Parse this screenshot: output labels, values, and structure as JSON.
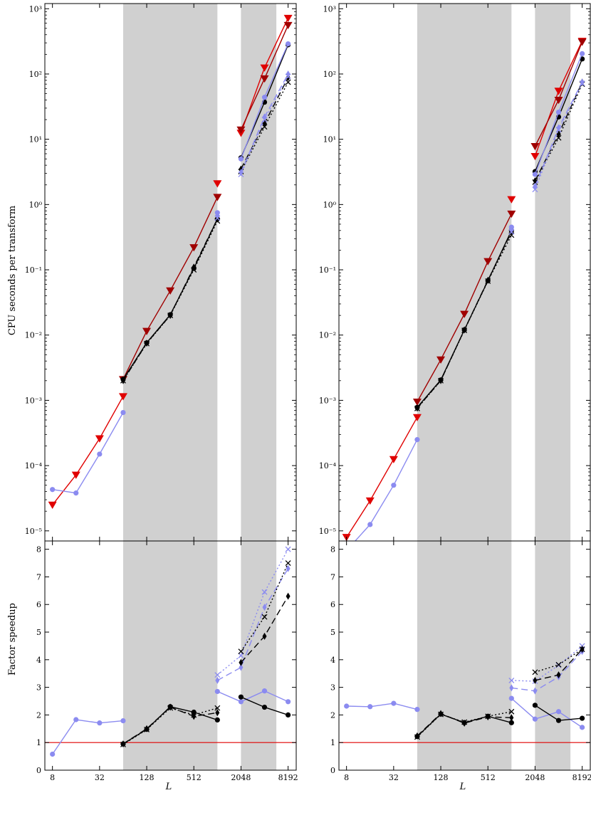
{
  "figure": {
    "ylabel_top": "CPU seconds per transform",
    "ylabel_bottom": "Factor speedup",
    "xlabel": "L"
  },
  "colors": {
    "red": "#e00000",
    "dark_red": "#a00000",
    "black": "#000000",
    "light_blue": "#8b8bf0",
    "shade": "#d0d0d0",
    "unity_line": "#e00000"
  },
  "chart_data": [
    {
      "panel": "left",
      "type": "line",
      "xscale": "log2",
      "x_ticks": [
        8,
        32,
        128,
        512,
        2048,
        8192
      ],
      "x_tick_labels": [
        "8",
        "32",
        "128",
        "512",
        "2048",
        "8192"
      ],
      "shaded_x_ranges": [
        [
          64,
          1024
        ],
        [
          2048,
          5800
        ]
      ],
      "top": {
        "yscale": "log10",
        "ylim": [
          7e-06,
          1200
        ],
        "y_tick_labels": [
          "10⁻⁵",
          "10⁻⁴",
          "10⁻³",
          "10⁻²",
          "10⁻¹",
          "10⁰",
          "10¹",
          "10²",
          "10³"
        ],
        "series": [
          {
            "style": "red-triangle",
            "x": [
              8,
              16,
              32,
              64
            ],
            "y": [
              2.5e-05,
              7.2e-05,
              0.00026,
              0.00115
            ]
          },
          {
            "style": "blue-circle",
            "x": [
              8,
              16,
              32,
              64
            ],
            "y": [
              4.3e-05,
              3.8e-05,
              0.00015,
              0.00065
            ]
          },
          {
            "style": "darkred-triangle",
            "x": [
              64,
              128,
              256,
              512,
              1024
            ],
            "y": [
              0.0021,
              0.0115,
              0.048,
              0.22,
              1.3
            ]
          },
          {
            "style": "red-triangle",
            "x": [
              1024
            ],
            "y": [
              2.1
            ]
          },
          {
            "style": "black-circle",
            "x": [
              64,
              128,
              256,
              512,
              1024
            ],
            "y": [
              0.0021,
              0.0076,
              0.0205,
              0.105,
              0.6
            ]
          },
          {
            "style": "black-diamond-dashed",
            "x": [
              64,
              128,
              256,
              512,
              1024
            ],
            "y": [
              0.002,
              0.0075,
              0.02,
              0.11,
              0.6
            ]
          },
          {
            "style": "black-cross-dotted",
            "x": [
              64,
              128,
              256,
              512,
              1024
            ],
            "y": [
              0.002,
              0.0074,
              0.02,
              0.1,
              0.56
            ]
          },
          {
            "style": "blue-circle",
            "x": [
              1024
            ],
            "y": [
              0.75
            ]
          },
          {
            "style": "blue-diamond-dashed",
            "x": [
              1024
            ],
            "y": [
              0.68
            ]
          },
          {
            "style": "blue-cross-dotted",
            "x": [
              1024
            ],
            "y": [
              0.62
            ]
          },
          {
            "style": "red-triangle",
            "x": [
              2048,
              4096,
              8192
            ],
            "y": [
              12.5,
              125,
              720
            ]
          },
          {
            "style": "darkred-triangle",
            "x": [
              2048,
              4096,
              8192
            ],
            "y": [
              14,
              85,
              560
            ]
          },
          {
            "style": "black-circle",
            "x": [
              2048,
              4096,
              8192
            ],
            "y": [
              5.2,
              37,
              280
            ]
          },
          {
            "style": "blue-circle",
            "x": [
              2048,
              4096,
              8192
            ],
            "y": [
              5.0,
              44,
              290
            ]
          },
          {
            "style": "black-diamond-dashed",
            "x": [
              2048,
              4096,
              8192
            ],
            "y": [
              3.5,
              17.5,
              88
            ]
          },
          {
            "style": "black-cross-dotted",
            "x": [
              2048,
              4096,
              8192
            ],
            "y": [
              3.2,
              15.5,
              75
            ]
          },
          {
            "style": "blue-diamond-dashed",
            "x": [
              2048,
              4096,
              8192
            ],
            "y": [
              3.1,
              22,
              100
            ]
          },
          {
            "style": "blue-cross-dotted",
            "x": [
              2048,
              4096,
              8192
            ],
            "y": [
              2.9,
              20,
              92
            ]
          }
        ]
      },
      "bottom": {
        "yscale": "linear",
        "ylim": [
          0,
          8.3
        ],
        "y_ticks": [
          0,
          1,
          2,
          3,
          4,
          5,
          6,
          7,
          8
        ],
        "reference_line": 1,
        "series": [
          {
            "style": "blue-circle",
            "x": [
              8,
              16,
              32,
              64
            ],
            "y": [
              0.58,
              1.83,
              1.71,
              1.79
            ]
          },
          {
            "style": "black-circle",
            "x": [
              64,
              128,
              256,
              512,
              1024
            ],
            "y": [
              0.95,
              1.48,
              2.3,
              2.1,
              1.82
            ]
          },
          {
            "style": "black-diamond-dashed",
            "x": [
              64,
              128,
              256,
              512,
              1024
            ],
            "y": [
              0.95,
              1.5,
              2.28,
              1.95,
              2.08
            ]
          },
          {
            "style": "black-cross-dotted",
            "x": [
              64,
              128,
              256,
              512,
              1024
            ],
            "y": [
              0.93,
              1.47,
              2.25,
              2.0,
              2.25
            ]
          },
          {
            "style": "blue-circle",
            "x": [
              1024,
              2048,
              4096,
              8192
            ],
            "y": [
              2.85,
              2.48,
              2.87,
              2.48
            ]
          },
          {
            "style": "blue-diamond-dashed",
            "x": [
              1024,
              2048,
              4096,
              8192
            ],
            "y": [
              3.25,
              3.72,
              5.9,
              7.3
            ]
          },
          {
            "style": "blue-cross-dotted",
            "x": [
              1024,
              2048,
              4096,
              8192
            ],
            "y": [
              3.45,
              4.15,
              6.45,
              8.0
            ]
          },
          {
            "style": "black-circle",
            "x": [
              2048,
              4096,
              8192
            ],
            "y": [
              2.65,
              2.28,
              2.0
            ]
          },
          {
            "style": "black-diamond-dashed",
            "x": [
              2048,
              4096,
              8192
            ],
            "y": [
              3.9,
              4.85,
              6.3
            ]
          },
          {
            "style": "black-cross-dotted",
            "x": [
              2048,
              4096,
              8192
            ],
            "y": [
              4.3,
              5.55,
              7.5
            ]
          }
        ]
      }
    },
    {
      "panel": "right",
      "type": "line",
      "xscale": "log2",
      "x_ticks": [
        8,
        32,
        128,
        512,
        2048,
        8192
      ],
      "x_tick_labels": [
        "8",
        "32",
        "128",
        "512",
        "2048",
        "8192"
      ],
      "shaded_x_ranges": [
        [
          64,
          1024
        ],
        [
          2048,
          5800
        ]
      ],
      "top": {
        "yscale": "log10",
        "ylim": [
          7e-06,
          1200
        ],
        "y_tick_labels": [
          "10⁻⁵",
          "10⁻⁴",
          "10⁻³",
          "10⁻²",
          "10⁻¹",
          "10⁰",
          "10¹",
          "10²",
          "10³"
        ],
        "series": [
          {
            "style": "red-triangle",
            "x": [
              8,
              16,
              32,
              64
            ],
            "y": [
              8e-06,
              2.9e-05,
              0.000125,
              0.00055
            ]
          },
          {
            "style": "blue-circle",
            "x": [
              8,
              16,
              32,
              64
            ],
            "y": [
              5e-06,
              1.25e-05,
              5e-05,
              0.00025
            ]
          },
          {
            "style": "darkred-triangle",
            "x": [
              64,
              128,
              256,
              512,
              1024
            ],
            "y": [
              0.00095,
              0.0042,
              0.021,
              0.135,
              0.72
            ]
          },
          {
            "style": "red-triangle",
            "x": [
              1024
            ],
            "y": [
              1.2
            ]
          },
          {
            "style": "black-circle",
            "x": [
              64,
              128,
              256,
              512,
              1024
            ],
            "y": [
              0.00078,
              0.00205,
              0.012,
              0.068,
              0.4
            ]
          },
          {
            "style": "black-diamond-dashed",
            "x": [
              64,
              128,
              256,
              512,
              1024
            ],
            "y": [
              0.00076,
              0.002,
              0.012,
              0.069,
              0.38
            ]
          },
          {
            "style": "black-cross-dotted",
            "x": [
              64,
              128,
              256,
              512,
              1024
            ],
            "y": [
              0.00075,
              0.002,
              0.0118,
              0.067,
              0.34
            ]
          },
          {
            "style": "blue-circle",
            "x": [
              1024
            ],
            "y": [
              0.45
            ]
          },
          {
            "style": "blue-diamond-dashed",
            "x": [
              1024
            ],
            "y": [
              0.41
            ]
          },
          {
            "style": "blue-cross-dotted",
            "x": [
              1024
            ],
            "y": [
              0.38
            ]
          },
          {
            "style": "red-triangle",
            "x": [
              2048,
              4096,
              8192
            ],
            "y": [
              5.5,
              55,
              320
            ]
          },
          {
            "style": "darkred-triangle",
            "x": [
              2048,
              4096,
              8192
            ],
            "y": [
              7.8,
              40,
              310
            ]
          },
          {
            "style": "black-circle",
            "x": [
              2048,
              4096,
              8192
            ],
            "y": [
              3.2,
              22,
              170
            ]
          },
          {
            "style": "blue-circle",
            "x": [
              2048,
              4096,
              8192
            ],
            "y": [
              2.9,
              26,
              205
            ]
          },
          {
            "style": "black-diamond-dashed",
            "x": [
              2048,
              4096,
              8192
            ],
            "y": [
              2.3,
              12,
              75
            ]
          },
          {
            "style": "black-cross-dotted",
            "x": [
              2048,
              4096,
              8192
            ],
            "y": [
              2.2,
              10.5,
              70
            ]
          },
          {
            "style": "blue-diamond-dashed",
            "x": [
              2048,
              4096,
              8192
            ],
            "y": [
              1.9,
              15,
              75
            ]
          },
          {
            "style": "blue-cross-dotted",
            "x": [
              2048,
              4096,
              8192
            ],
            "y": [
              1.7,
              14,
              72
            ]
          }
        ]
      },
      "bottom": {
        "yscale": "linear",
        "ylim": [
          0,
          8.3
        ],
        "y_ticks": [
          0,
          1,
          2,
          3,
          4,
          5,
          6,
          7,
          8
        ],
        "reference_line": 1,
        "series": [
          {
            "style": "blue-circle",
            "x": [
              8,
              16,
              32,
              64
            ],
            "y": [
              2.32,
              2.3,
              2.42,
              2.2
            ]
          },
          {
            "style": "black-circle",
            "x": [
              64,
              128,
              256,
              512,
              1024
            ],
            "y": [
              1.22,
              2.03,
              1.72,
              1.95,
              1.72
            ]
          },
          {
            "style": "black-diamond-dashed",
            "x": [
              64,
              128,
              256,
              512,
              1024
            ],
            "y": [
              1.24,
              2.05,
              1.7,
              1.93,
              1.9
            ]
          },
          {
            "style": "black-cross-dotted",
            "x": [
              64,
              128,
              256,
              512,
              1024
            ],
            "y": [
              1.2,
              2.02,
              1.74,
              1.95,
              2.12
            ]
          },
          {
            "style": "blue-circle",
            "x": [
              1024,
              2048,
              4096,
              8192
            ],
            "y": [
              2.6,
              1.85,
              2.12,
              1.55
            ]
          },
          {
            "style": "blue-diamond-dashed",
            "x": [
              1024,
              2048,
              4096,
              8192
            ],
            "y": [
              2.98,
              2.87,
              3.38,
              4.3
            ]
          },
          {
            "style": "blue-cross-dotted",
            "x": [
              1024,
              2048,
              4096,
              8192
            ],
            "y": [
              3.25,
              3.22,
              3.8,
              4.5
            ]
          },
          {
            "style": "black-circle",
            "x": [
              2048,
              4096,
              8192
            ],
            "y": [
              2.35,
              1.8,
              1.88
            ]
          },
          {
            "style": "black-diamond-dashed",
            "x": [
              2048,
              4096,
              8192
            ],
            "y": [
              3.25,
              3.45,
              4.38
            ]
          },
          {
            "style": "black-cross-dotted",
            "x": [
              2048,
              4096,
              8192
            ],
            "y": [
              3.55,
              3.82,
              4.38
            ]
          }
        ]
      }
    }
  ]
}
